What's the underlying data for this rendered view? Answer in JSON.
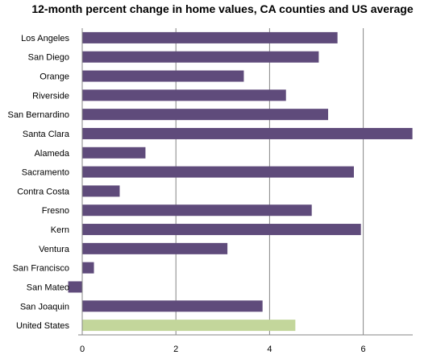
{
  "chart_data": {
    "type": "bar",
    "orientation": "horizontal",
    "title": "12-month percent change in home values, CA counties and US average",
    "xlabel": "",
    "ylabel": "",
    "categories": [
      "Los Angeles",
      "San Diego",
      "Orange",
      "Riverside",
      "San Bernardino",
      "Santa Clara",
      "Alameda",
      "Sacramento",
      "Contra Costa",
      "Fresno",
      "Kern",
      "Ventura",
      "San Francisco",
      "San Mateo",
      "San Joaquin",
      "United States"
    ],
    "values": [
      5.45,
      5.05,
      3.45,
      4.35,
      5.25,
      7.05,
      1.35,
      5.8,
      0.8,
      4.9,
      5.95,
      3.1,
      0.25,
      -0.3,
      3.85,
      4.55
    ],
    "xlim": [
      0,
      7
    ],
    "xticks": [
      0,
      2,
      4,
      6
    ],
    "grid": true,
    "legend": "none",
    "colors": {
      "bar": "#5f4b7b",
      "highlight_bar": "#c3d69b",
      "highlight_category": "United States",
      "gridline": "#868686",
      "axis": "#868686"
    }
  }
}
